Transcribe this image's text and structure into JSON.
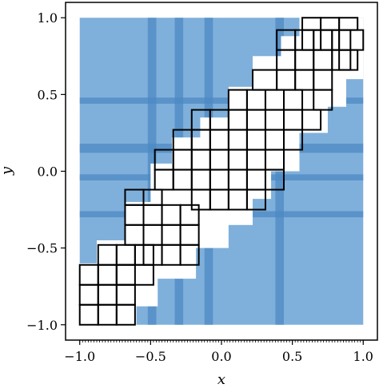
{
  "chart_data": {
    "type": "rect-partition",
    "xlabel": "x",
    "ylabel": "y",
    "xlim": [
      -1.1,
      1.1
    ],
    "ylim": [
      -1.1,
      1.1
    ],
    "grid": false,
    "legend": "none",
    "colors": {
      "fill": "#7fb0db",
      "dark_fill": "#4a88c2",
      "box_fill": "#ffffff",
      "box_stroke": "#000000"
    },
    "x_ticks": [
      {
        "value": -1.0,
        "label": "−1.0"
      },
      {
        "value": -0.5,
        "label": "−0.5"
      },
      {
        "value": 0.0,
        "label": "0.0"
      },
      {
        "value": 0.5,
        "label": "0.5"
      },
      {
        "value": 1.0,
        "label": "1.0"
      }
    ],
    "y_ticks": [
      {
        "value": -1.0,
        "label": "−1.0"
      },
      {
        "value": -0.5,
        "label": "−0.5"
      },
      {
        "value": 0.0,
        "label": "0.0"
      },
      {
        "value": 0.5,
        "label": "0.5"
      },
      {
        "value": 1.0,
        "label": "1.0"
      }
    ],
    "region": {
      "x0": -1.0,
      "x1": 1.0,
      "y0": -1.0,
      "y1": 1.0
    },
    "vertical_bands": [
      {
        "x0": -0.52,
        "x1": -0.46
      },
      {
        "x0": -0.33,
        "x1": -0.27
      },
      {
        "x0": -0.12,
        "x1": -0.06
      },
      {
        "x0": 0.38,
        "x1": 0.44
      }
    ],
    "horizontal_bands": [
      {
        "y0": 0.12,
        "y1": 0.18
      },
      {
        "y0": -0.06,
        "y1": -0.02
      },
      {
        "y0": -0.3,
        "y1": -0.26
      },
      {
        "y0": 0.44,
        "y1": 0.48
      }
    ],
    "white_regions": [
      {
        "x0": -1.0,
        "x1": -0.6,
        "y0": -1.0,
        "y1": -0.6
      },
      {
        "x0": -0.88,
        "x1": -0.45,
        "y0": -0.88,
        "y1": -0.45
      },
      {
        "x0": -0.68,
        "x1": -0.18,
        "y0": -0.7,
        "y1": -0.2
      },
      {
        "x0": -0.5,
        "x1": 0.05,
        "y0": -0.5,
        "y1": 0.05
      },
      {
        "x0": -0.35,
        "x1": 0.22,
        "y0": -0.35,
        "y1": 0.22
      },
      {
        "x0": -0.15,
        "x1": 0.35,
        "y0": -0.18,
        "y1": 0.35
      },
      {
        "x0": 0.05,
        "x1": 0.55,
        "y0": 0.0,
        "y1": 0.55
      },
      {
        "x0": 0.22,
        "x1": 0.75,
        "y0": 0.25,
        "y1": 0.75
      },
      {
        "x0": 0.42,
        "x1": 0.88,
        "y0": 0.42,
        "y1": 0.88
      },
      {
        "x0": 0.55,
        "x1": 1.0,
        "y0": 0.6,
        "y1": 1.0
      }
    ],
    "boxes": [
      {
        "x0": -1.0,
        "x1": -0.87,
        "y0": -1.0,
        "y1": -0.87
      },
      {
        "x0": -0.87,
        "x1": -0.74,
        "y0": -1.0,
        "y1": -0.87
      },
      {
        "x0": -1.0,
        "x1": -0.87,
        "y0": -0.87,
        "y1": -0.74
      },
      {
        "x0": -0.87,
        "x1": -0.74,
        "y0": -0.87,
        "y1": -0.74
      },
      {
        "x0": -1.0,
        "x1": -0.87,
        "y0": -0.74,
        "y1": -0.61
      },
      {
        "x0": -0.87,
        "x1": -0.74,
        "y0": -0.74,
        "y1": -0.61
      },
      {
        "x0": -0.74,
        "x1": -0.61,
        "y0": -0.74,
        "y1": -0.61
      },
      {
        "x0": -0.74,
        "x1": -0.61,
        "y0": -1.0,
        "y1": -0.87
      },
      {
        "x0": -0.74,
        "x1": -0.61,
        "y0": -0.87,
        "y1": -0.74
      },
      {
        "x0": -0.87,
        "x1": -0.74,
        "y0": -0.61,
        "y1": -0.48
      },
      {
        "x0": -0.74,
        "x1": -0.61,
        "y0": -0.61,
        "y1": -0.48
      },
      {
        "x0": -0.61,
        "x1": -0.48,
        "y0": -0.61,
        "y1": -0.48
      },
      {
        "x0": -0.74,
        "x1": -0.48,
        "y0": -0.74,
        "y1": -0.61
      },
      {
        "x0": -0.68,
        "x1": -0.55,
        "y0": -0.48,
        "y1": -0.35
      },
      {
        "x0": -0.55,
        "x1": -0.42,
        "y0": -0.48,
        "y1": -0.35
      },
      {
        "x0": -0.42,
        "x1": -0.29,
        "y0": -0.48,
        "y1": -0.35
      },
      {
        "x0": -0.55,
        "x1": -0.42,
        "y0": -0.61,
        "y1": -0.48
      },
      {
        "x0": -0.42,
        "x1": -0.29,
        "y0": -0.61,
        "y1": -0.48
      },
      {
        "x0": -0.29,
        "x1": -0.16,
        "y0": -0.61,
        "y1": -0.48
      },
      {
        "x0": -0.68,
        "x1": -0.55,
        "y0": -0.35,
        "y1": -0.22
      },
      {
        "x0": -0.55,
        "x1": -0.42,
        "y0": -0.35,
        "y1": -0.22
      },
      {
        "x0": -0.42,
        "x1": -0.29,
        "y0": -0.35,
        "y1": -0.22
      },
      {
        "x0": -0.29,
        "x1": -0.16,
        "y0": -0.35,
        "y1": -0.22
      },
      {
        "x0": -0.29,
        "x1": -0.16,
        "y0": -0.48,
        "y1": -0.35
      },
      {
        "x0": -0.68,
        "x1": -0.55,
        "y0": -0.22,
        "y1": -0.12
      },
      {
        "x0": -0.55,
        "x1": -0.42,
        "y0": -0.22,
        "y1": -0.12
      },
      {
        "x0": -0.47,
        "x1": -0.34,
        "y0": -0.12,
        "y1": 0.01
      },
      {
        "x0": -0.34,
        "x1": -0.21,
        "y0": -0.12,
        "y1": 0.01
      },
      {
        "x0": -0.21,
        "x1": -0.08,
        "y0": -0.12,
        "y1": 0.01
      },
      {
        "x0": -0.08,
        "x1": 0.05,
        "y0": -0.12,
        "y1": 0.01
      },
      {
        "x0": -0.47,
        "x1": -0.34,
        "y0": 0.01,
        "y1": 0.14
      },
      {
        "x0": -0.34,
        "x1": -0.21,
        "y0": 0.01,
        "y1": 0.14
      },
      {
        "x0": -0.21,
        "x1": -0.08,
        "y0": 0.01,
        "y1": 0.14
      },
      {
        "x0": -0.08,
        "x1": 0.05,
        "y0": 0.01,
        "y1": 0.14
      },
      {
        "x0": 0.05,
        "x1": 0.18,
        "y0": 0.01,
        "y1": 0.14
      },
      {
        "x0": -0.21,
        "x1": -0.08,
        "y0": -0.25,
        "y1": -0.12
      },
      {
        "x0": -0.08,
        "x1": 0.05,
        "y0": -0.25,
        "y1": -0.12
      },
      {
        "x0": 0.05,
        "x1": 0.18,
        "y0": -0.25,
        "y1": -0.12
      },
      {
        "x0": 0.18,
        "x1": 0.31,
        "y0": -0.25,
        "y1": -0.12
      },
      {
        "x0": 0.05,
        "x1": 0.18,
        "y0": -0.12,
        "y1": 0.01
      },
      {
        "x0": 0.18,
        "x1": 0.31,
        "y0": -0.12,
        "y1": 0.01
      },
      {
        "x0": 0.31,
        "x1": 0.44,
        "y0": -0.12,
        "y1": 0.01
      },
      {
        "x0": -0.34,
        "x1": -0.21,
        "y0": 0.14,
        "y1": 0.27
      },
      {
        "x0": -0.21,
        "x1": -0.08,
        "y0": 0.14,
        "y1": 0.27
      },
      {
        "x0": -0.08,
        "x1": 0.05,
        "y0": 0.14,
        "y1": 0.27
      },
      {
        "x0": 0.05,
        "x1": 0.18,
        "y0": 0.14,
        "y1": 0.27
      },
      {
        "x0": 0.18,
        "x1": 0.31,
        "y0": 0.14,
        "y1": 0.27
      },
      {
        "x0": 0.18,
        "x1": 0.31,
        "y0": 0.01,
        "y1": 0.14
      },
      {
        "x0": 0.31,
        "x1": 0.44,
        "y0": 0.01,
        "y1": 0.14
      },
      {
        "x0": -0.21,
        "x1": -0.08,
        "y0": 0.27,
        "y1": 0.4
      },
      {
        "x0": -0.08,
        "x1": 0.05,
        "y0": 0.27,
        "y1": 0.4
      },
      {
        "x0": 0.05,
        "x1": 0.18,
        "y0": 0.27,
        "y1": 0.4
      },
      {
        "x0": 0.18,
        "x1": 0.31,
        "y0": 0.27,
        "y1": 0.4
      },
      {
        "x0": 0.31,
        "x1": 0.44,
        "y0": 0.27,
        "y1": 0.4
      },
      {
        "x0": 0.31,
        "x1": 0.44,
        "y0": 0.14,
        "y1": 0.27
      },
      {
        "x0": 0.44,
        "x1": 0.57,
        "y0": 0.14,
        "y1": 0.27
      },
      {
        "x0": 0.05,
        "x1": 0.18,
        "y0": 0.4,
        "y1": 0.53
      },
      {
        "x0": 0.18,
        "x1": 0.31,
        "y0": 0.4,
        "y1": 0.53
      },
      {
        "x0": 0.31,
        "x1": 0.44,
        "y0": 0.4,
        "y1": 0.53
      },
      {
        "x0": 0.44,
        "x1": 0.57,
        "y0": 0.4,
        "y1": 0.53
      },
      {
        "x0": 0.44,
        "x1": 0.57,
        "y0": 0.27,
        "y1": 0.4
      },
      {
        "x0": 0.57,
        "x1": 0.7,
        "y0": 0.27,
        "y1": 0.4
      },
      {
        "x0": 0.22,
        "x1": 0.39,
        "y0": 0.53,
        "y1": 0.66
      },
      {
        "x0": 0.39,
        "x1": 0.52,
        "y0": 0.53,
        "y1": 0.66
      },
      {
        "x0": 0.52,
        "x1": 0.65,
        "y0": 0.53,
        "y1": 0.66
      },
      {
        "x0": 0.65,
        "x1": 0.78,
        "y0": 0.53,
        "y1": 0.66
      },
      {
        "x0": 0.65,
        "x1": 0.78,
        "y0": 0.4,
        "y1": 0.53
      },
      {
        "x0": 0.39,
        "x1": 0.52,
        "y0": 0.66,
        "y1": 0.79
      },
      {
        "x0": 0.52,
        "x1": 0.65,
        "y0": 0.66,
        "y1": 0.79
      },
      {
        "x0": 0.65,
        "x1": 0.78,
        "y0": 0.66,
        "y1": 0.79
      },
      {
        "x0": 0.78,
        "x1": 0.91,
        "y0": 0.66,
        "y1": 0.79
      },
      {
        "x0": 0.39,
        "x1": 0.52,
        "y0": 0.79,
        "y1": 0.92
      },
      {
        "x0": 0.52,
        "x1": 0.65,
        "y0": 0.79,
        "y1": 0.92
      },
      {
        "x0": 0.65,
        "x1": 0.78,
        "y0": 0.79,
        "y1": 0.92
      },
      {
        "x0": 0.78,
        "x1": 0.91,
        "y0": 0.79,
        "y1": 0.92
      },
      {
        "x0": 0.57,
        "x1": 0.7,
        "y0": 0.92,
        "y1": 1.0
      },
      {
        "x0": 0.7,
        "x1": 0.83,
        "y0": 0.92,
        "y1": 1.0
      },
      {
        "x0": 0.83,
        "x1": 0.96,
        "y0": 0.92,
        "y1": 1.0
      },
      {
        "x0": 0.83,
        "x1": 1.0,
        "y0": 0.79,
        "y1": 0.92
      },
      {
        "x0": 0.57,
        "x1": 0.7,
        "y0": 0.79,
        "y1": 0.92
      },
      {
        "x0": 0.7,
        "x1": 0.83,
        "y0": 0.79,
        "y1": 0.92
      },
      {
        "x0": 0.83,
        "x1": 0.96,
        "y0": 0.66,
        "y1": 0.79
      }
    ]
  }
}
